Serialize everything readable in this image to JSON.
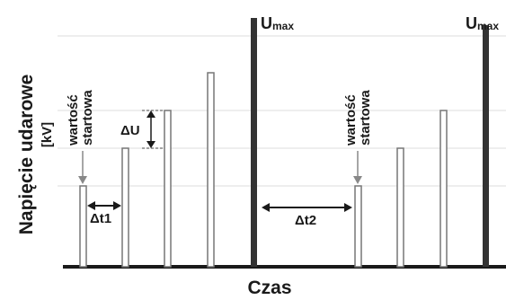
{
  "axes": {
    "y_label": "Napięcie udarowe",
    "y_unit": "[kV]",
    "x_label": "Czas"
  },
  "labels": {
    "umax_1": {
      "main": "U",
      "sub": "max"
    },
    "umax_2": {
      "main": "U",
      "sub": "max"
    },
    "start_value_1": [
      "wartość",
      "startowa"
    ],
    "start_value_2": [
      "wartość",
      "startowa"
    ],
    "delta_u": "ΔU",
    "delta_t1": "Δt1",
    "delta_t2": "Δt2"
  },
  "series": [
    {
      "group": 1,
      "pulses": [
        "start",
        "step",
        "step",
        "step",
        "max"
      ]
    },
    {
      "group": 2,
      "pulses": [
        "start",
        "step",
        "step",
        "max"
      ]
    }
  ],
  "colors": {
    "pulse_outline": "#777777",
    "umax_bar": "#333333",
    "axis": "#1a1a1a",
    "grid": "#d9d9d9",
    "arrow": "#1a1a1a"
  }
}
